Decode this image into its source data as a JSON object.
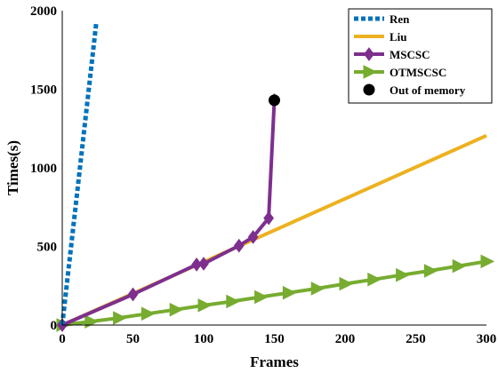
{
  "chart_data": {
    "type": "line",
    "xlabel": "Frames",
    "ylabel": "Times(s)",
    "xlim": [
      0,
      300
    ],
    "ylim": [
      0,
      2000
    ],
    "x_ticks": [
      "0",
      "50",
      "100",
      "150",
      "200",
      "250",
      "300"
    ],
    "y_ticks": [
      "0",
      "500",
      "1000",
      "1500",
      "2000"
    ],
    "grid": false,
    "legend_position": "top-right",
    "series": [
      {
        "name": "Ren",
        "color": "#0072BD",
        "style": "dotted",
        "marker": "none",
        "points": [
          [
            0,
            0
          ],
          [
            24,
            1920
          ]
        ]
      },
      {
        "name": "Liu",
        "color": "#EDB120",
        "style": "solid",
        "marker": "none",
        "points": [
          [
            0,
            0
          ],
          [
            300,
            1205
          ]
        ]
      },
      {
        "name": "MSCSC",
        "color": "#7E2F8E",
        "style": "solid",
        "marker": "diamond",
        "points": [
          [
            0,
            0
          ],
          [
            50,
            195
          ],
          [
            95,
            385
          ],
          [
            100,
            390
          ],
          [
            125,
            505
          ],
          [
            135,
            560
          ],
          [
            146,
            680
          ],
          [
            150,
            1430
          ]
        ]
      },
      {
        "name": "OTMSCSC",
        "color": "#77AC30",
        "style": "solid",
        "marker": "triangle-right",
        "points": [
          [
            0,
            0
          ],
          [
            20,
            22
          ],
          [
            40,
            45
          ],
          [
            60,
            72
          ],
          [
            80,
            98
          ],
          [
            100,
            125
          ],
          [
            120,
            150
          ],
          [
            140,
            178
          ],
          [
            160,
            205
          ],
          [
            180,
            232
          ],
          [
            200,
            262
          ],
          [
            220,
            290
          ],
          [
            240,
            318
          ],
          [
            260,
            345
          ],
          [
            280,
            375
          ],
          [
            300,
            405
          ]
        ]
      },
      {
        "name": "Out of memory",
        "color": "#000000",
        "style": "none",
        "marker": "circle",
        "points": [
          [
            150,
            1430
          ]
        ]
      }
    ]
  }
}
